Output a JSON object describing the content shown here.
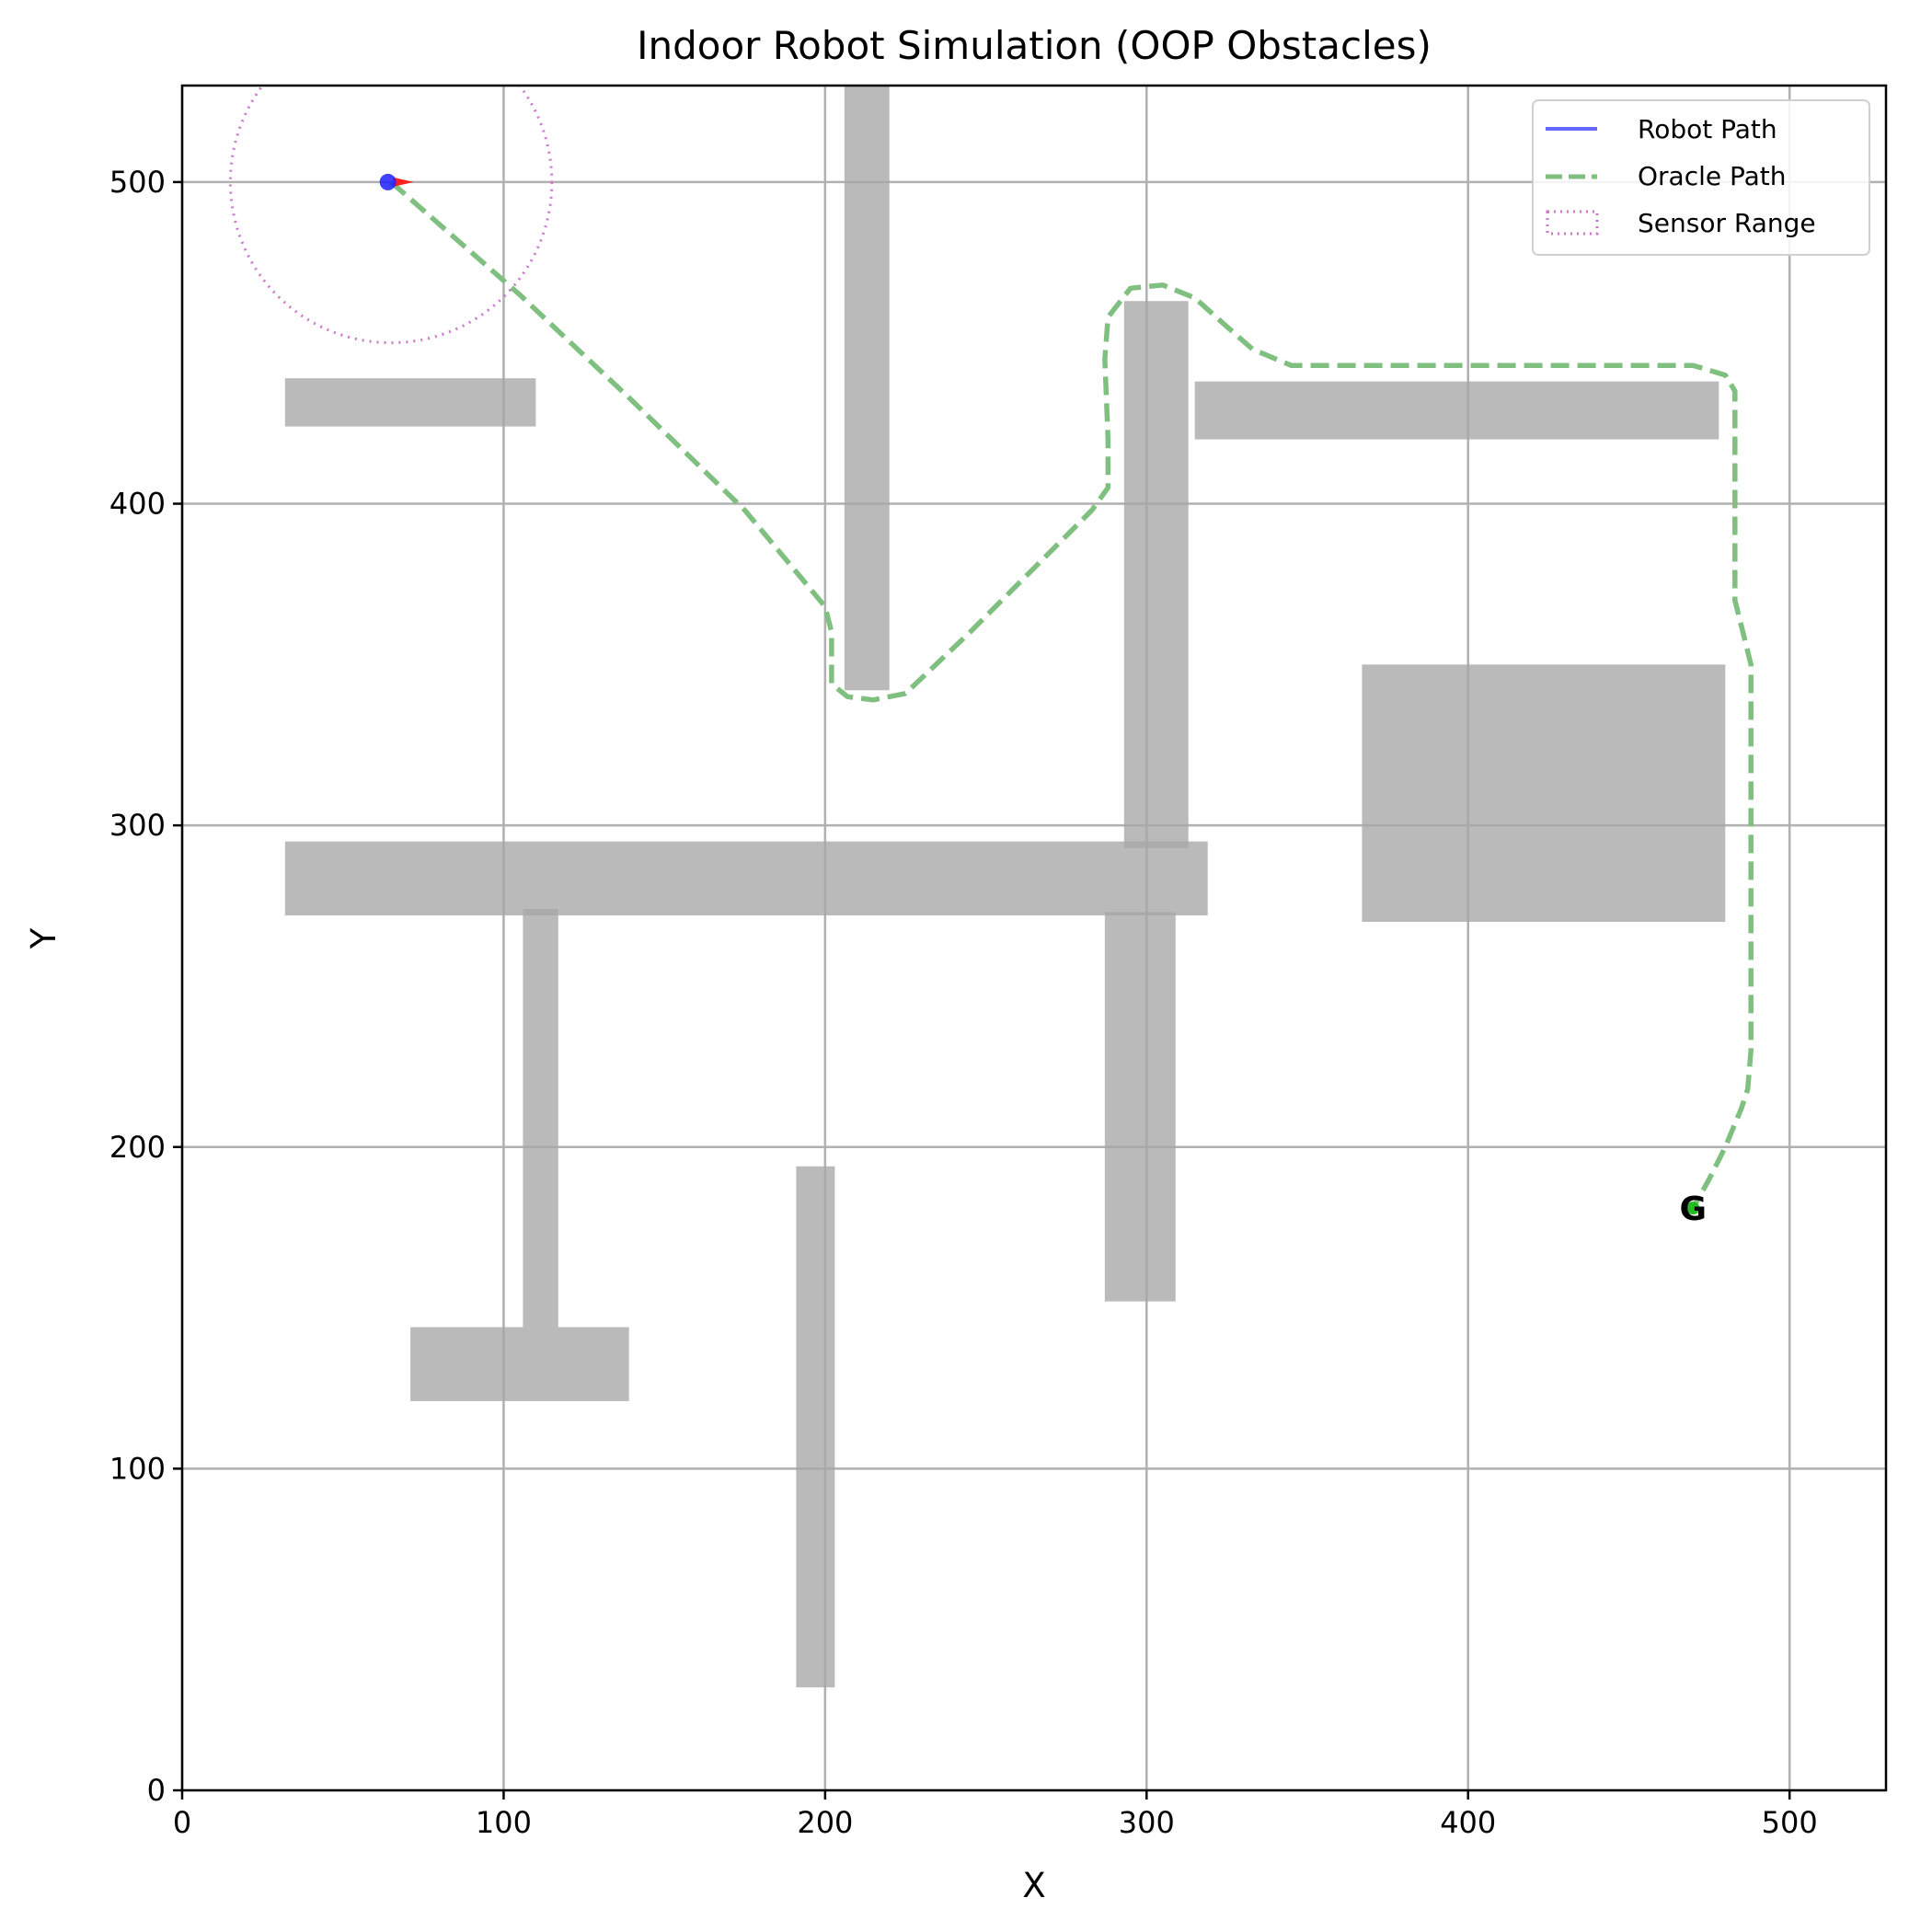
{
  "chart_data": {
    "type": "line",
    "title": "Indoor Robot Simulation (OOP Obstacles)",
    "xlabel": "X",
    "ylabel": "Y",
    "xlim": [
      0,
      530
    ],
    "ylim": [
      0,
      530
    ],
    "xticks": [
      0,
      100,
      200,
      300,
      400,
      500
    ],
    "yticks": [
      0,
      100,
      200,
      300,
      400,
      500
    ],
    "grid": true,
    "legend_position": "top-right",
    "colors": {
      "obstacle": "#a6a6a6",
      "robot_path": "#6666ff",
      "oracle_path": "#7fbf7f",
      "sensor_range": "#cc77cc",
      "robot": "#1f1fff",
      "heading": "#ff1f1f",
      "goal": "#22bb22"
    },
    "obstacles": [
      {
        "x0": 32,
        "y0": 424,
        "x1": 110,
        "y1": 439
      },
      {
        "x0": 206,
        "y0": 342,
        "x1": 220,
        "y1": 530
      },
      {
        "x0": 293,
        "y0": 293,
        "x1": 313,
        "y1": 463
      },
      {
        "x0": 315,
        "y0": 420,
        "x1": 478,
        "y1": 438
      },
      {
        "x0": 367,
        "y0": 270,
        "x1": 480,
        "y1": 350
      },
      {
        "x0": 32,
        "y0": 272,
        "x1": 319,
        "y1": 295
      },
      {
        "x0": 106,
        "y0": 144,
        "x1": 117,
        "y1": 274
      },
      {
        "x0": 71,
        "y0": 121,
        "x1": 139,
        "y1": 144
      },
      {
        "x0": 191,
        "y0": 32,
        "x1": 203,
        "y1": 194
      },
      {
        "x0": 287,
        "y0": 152,
        "x1": 309,
        "y1": 273
      }
    ],
    "series": [
      {
        "name": "Robot Path",
        "style": "solid",
        "points": []
      },
      {
        "name": "Oracle Path",
        "style": "dashed",
        "points": [
          [
            65,
            500
          ],
          [
            105,
            465
          ],
          [
            140,
            432
          ],
          [
            175,
            398
          ],
          [
            200,
            368
          ],
          [
            202,
            360
          ],
          [
            202,
            344
          ],
          [
            207,
            340
          ],
          [
            215,
            339
          ],
          [
            225,
            341
          ],
          [
            245,
            360
          ],
          [
            265,
            380
          ],
          [
            283,
            398
          ],
          [
            288,
            405
          ],
          [
            288,
            420
          ],
          [
            287,
            445
          ],
          [
            288,
            458
          ],
          [
            295,
            467
          ],
          [
            305,
            468
          ],
          [
            315,
            464
          ],
          [
            325,
            455
          ],
          [
            333,
            448
          ],
          [
            345,
            443
          ],
          [
            360,
            443
          ],
          [
            400,
            443
          ],
          [
            440,
            443
          ],
          [
            470,
            443
          ],
          [
            480,
            440
          ],
          [
            483,
            435
          ],
          [
            483,
            400
          ],
          [
            483,
            370
          ],
          [
            485,
            362
          ],
          [
            488,
            350
          ],
          [
            488,
            300
          ],
          [
            488,
            260
          ],
          [
            488,
            230
          ],
          [
            487,
            218
          ],
          [
            485,
            212
          ],
          [
            480,
            200
          ],
          [
            475,
            190
          ],
          [
            470,
            181
          ]
        ]
      },
      {
        "name": "Sensor Range",
        "style": "dotted",
        "circle": {
          "cx": 65,
          "cy": 500,
          "r": 50
        }
      }
    ],
    "robot": {
      "x": 64,
      "y": 500,
      "heading_deg": 0
    },
    "goal": {
      "x": 470,
      "y": 181,
      "label": "G"
    }
  }
}
